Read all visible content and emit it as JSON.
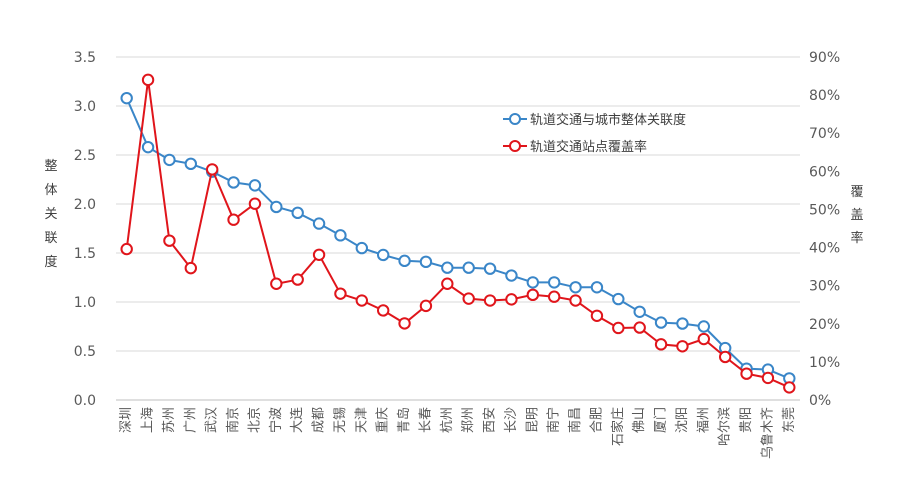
{
  "chart_data": {
    "type": "line",
    "title": "",
    "categories": [
      "深圳",
      "上海",
      "苏州",
      "广州",
      "武汉",
      "南京",
      "北京",
      "宁波",
      "大连",
      "成都",
      "无锡",
      "天津",
      "重庆",
      "青岛",
      "长春",
      "杭州",
      "郑州",
      "西安",
      "长沙",
      "昆明",
      "南宁",
      "南昌",
      "合肥",
      "石家庄",
      "佛山",
      "厦门",
      "沈阳",
      "福州",
      "哈尔滨",
      "贵阳",
      "乌鲁木齐",
      "东莞"
    ],
    "series": [
      {
        "name": "轨道交通与城市整体关联度",
        "axis": "left",
        "color": "#3A86C8",
        "values": [
          3.08,
          2.58,
          2.45,
          2.41,
          2.33,
          2.22,
          2.19,
          1.97,
          1.91,
          1.8,
          1.68,
          1.55,
          1.48,
          1.42,
          1.41,
          1.35,
          1.35,
          1.34,
          1.27,
          1.2,
          1.2,
          1.15,
          1.15,
          1.03,
          0.9,
          0.79,
          0.78,
          0.75,
          0.53,
          0.32,
          0.31,
          0.22
        ]
      },
      {
        "name": "轨道交通站点覆盖率",
        "axis": "right",
        "color": "#E0151B",
        "values": [
          39.6,
          84.0,
          41.8,
          34.6,
          60.5,
          47.3,
          51.5,
          30.5,
          31.6,
          38.1,
          27.9,
          26.1,
          23.5,
          20.1,
          24.7,
          30.5,
          26.6,
          26.1,
          26.4,
          27.6,
          27.1,
          26.1,
          22.1,
          18.9,
          19.0,
          14.6,
          14.1,
          16.0,
          11.3,
          6.9,
          5.8,
          3.3
        ]
      }
    ],
    "y_left": {
      "label": "整体关联度",
      "min": 0,
      "max": 3.5,
      "step": 0.5,
      "ticks": [
        "0.0",
        "0.5",
        "1.0",
        "1.5",
        "2.0",
        "2.5",
        "3.0",
        "3.5"
      ]
    },
    "y_right": {
      "label": "覆盖率",
      "min": 0,
      "max": 90,
      "step": 10,
      "ticks": [
        "0%",
        "10%",
        "20%",
        "30%",
        "40%",
        "50%",
        "60%",
        "70%",
        "80%",
        "90%"
      ]
    },
    "legend_position": "top-right",
    "grid": true
  }
}
